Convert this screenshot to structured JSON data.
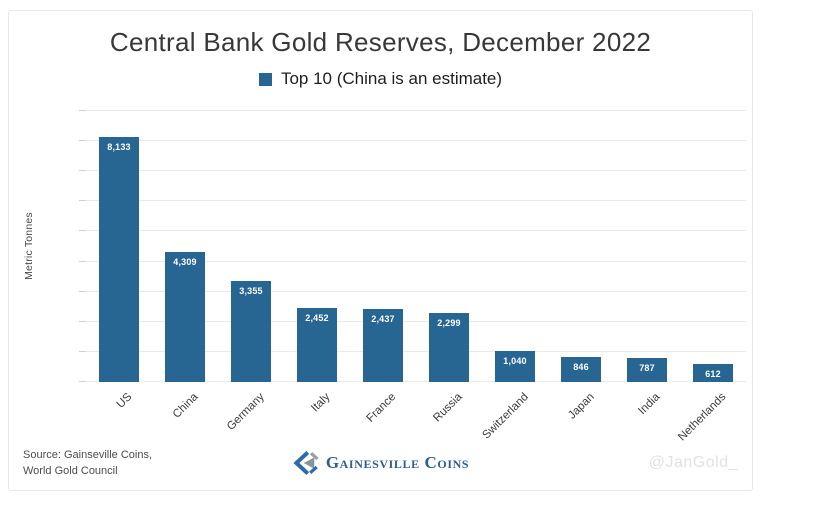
{
  "title": "Central Bank Gold Reserves, December 2022",
  "legend": {
    "label": "Top 10 (China is an estimate)"
  },
  "chart_data": {
    "type": "bar",
    "title": "Central Bank Gold Reserves, December 2022",
    "legend": "Top 10 (China is an estimate)",
    "ylabel": "Metric Tonnes",
    "xlabel": "",
    "categories": [
      "US",
      "China",
      "Germany",
      "Italy",
      "France",
      "Russia",
      "Switzerland",
      "Japan",
      "India",
      "Netherlands"
    ],
    "values": [
      8133,
      4309,
      3355,
      2452,
      2437,
      2299,
      1040,
      846,
      787,
      612
    ],
    "value_labels": [
      "8,133",
      "4,309",
      "3,355",
      "2,452",
      "2,437",
      "2,299",
      "1,040",
      "846",
      "787",
      "612"
    ],
    "ylim": [
      0,
      9000
    ],
    "ytick_step": 1000,
    "ytick_labels": [
      "0",
      "1,000",
      "2,000",
      "3,000",
      "4,000",
      "5,000",
      "6,000",
      "7,000",
      "8,000",
      "9,000"
    ],
    "grid": true,
    "legend_position": "top",
    "bar_color": "#276592"
  },
  "footer": {
    "source_line1": "Source: Gainseville Coins,",
    "source_line2": "World Gold Council",
    "logo_text": "Gainesville Coins",
    "watermark": "@JanGold_"
  },
  "colors": {
    "bar": "#276592",
    "grid": "#eaeaea",
    "border": "#e7e7e7",
    "title_text": "#383838",
    "axis_text": "#424242",
    "watermark": "#e2e2e2",
    "logo_blue": "#2d5f93",
    "logo_gray": "#98a0a8"
  }
}
